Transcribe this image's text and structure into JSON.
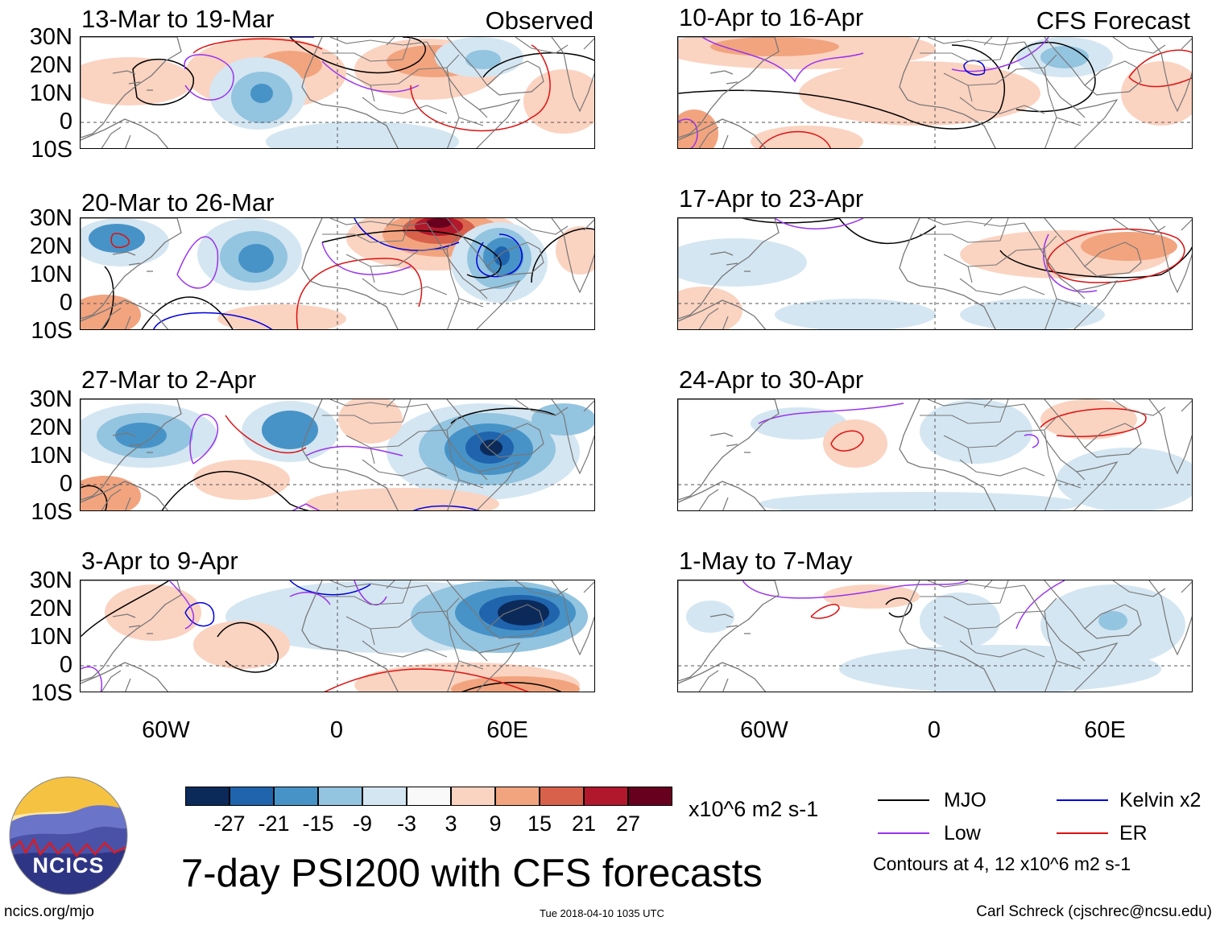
{
  "observed_tag": "Observed",
  "forecast_tag": "CFS Forecast",
  "latitude_labels": [
    "30N",
    "20N",
    "10N",
    "0",
    "10S"
  ],
  "longitude_labels": [
    "60W",
    "0",
    "60E"
  ],
  "panels_observed": [
    {
      "title": "13-Mar to 19-Mar"
    },
    {
      "title": "20-Mar to 26-Mar"
    },
    {
      "title": "27-Mar to 2-Apr"
    },
    {
      "title": "3-Apr to 9-Apr"
    }
  ],
  "panels_forecast": [
    {
      "title": "10-Apr to 16-Apr"
    },
    {
      "title": "17-Apr to 23-Apr"
    },
    {
      "title": "24-Apr to 30-Apr"
    },
    {
      "title": "1-May to 7-May"
    }
  ],
  "colorbar": {
    "colors": [
      "#0b2a5a",
      "#1f64ad",
      "#4793c7",
      "#93c4e0",
      "#d4e6f2",
      "#f9f9f9",
      "#fbd3c1",
      "#f2a47f",
      "#d8614c",
      "#b2182b",
      "#67001f"
    ],
    "labels": [
      "-27",
      "-21",
      "-15",
      "-9",
      "-3",
      "3",
      "9",
      "15",
      "21",
      "27"
    ],
    "units": "x10^6 m2 s-1"
  },
  "legend": {
    "items": [
      {
        "label": "MJO",
        "color": "#000000"
      },
      {
        "label": "Kelvin x2",
        "color": "#0000dd"
      },
      {
        "label": "Low",
        "color": "#9933ee"
      },
      {
        "label": "ER",
        "color": "#dd1111"
      }
    ],
    "contour_note": "Contours at 4, 12 x10^6 m2 s-1"
  },
  "logo_text": "NCICS",
  "main_title": "7-day PSI200 with CFS forecasts",
  "footer": {
    "url": "ncics.org/mjo",
    "timestamp": "Tue 2018-04-10 1035 UTC",
    "author": "Carl Schreck (cjschrec@ncsu.edu)"
  }
}
